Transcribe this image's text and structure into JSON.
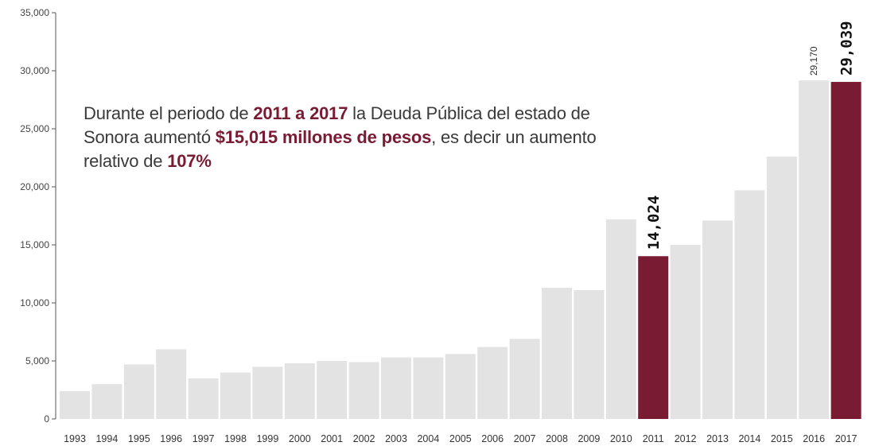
{
  "annotation": {
    "p1": "Durante el periodo de ",
    "h1": "2011 a 2017",
    "p2": " la Deuda Pública del estado de Sonora aumentó ",
    "h2": "$15,015 millones de pesos",
    "p3": ", es decir un aumento relativo de ",
    "h3": "107%"
  },
  "colors": {
    "bar": "#e3e3e3",
    "highlight": "#7a1b34",
    "axis": "#555555"
  },
  "chart_data": {
    "type": "bar",
    "title": "",
    "xlabel": "",
    "ylabel": "",
    "ylim": [
      0,
      35000
    ],
    "yticks": [
      0,
      5000,
      10000,
      15000,
      20000,
      25000,
      30000,
      35000
    ],
    "ytick_labels": [
      "0",
      "5,000",
      "10,000",
      "15,000",
      "20,000",
      "25,000",
      "30,000",
      "35,000"
    ],
    "categories": [
      "1993",
      "1994",
      "1995",
      "1996",
      "1997",
      "1998",
      "1999",
      "2000",
      "2001",
      "2002",
      "2003",
      "2004",
      "2005",
      "2006",
      "2007",
      "2008",
      "2009",
      "2010",
      "2011",
      "2012",
      "2013",
      "2014",
      "2015",
      "2016",
      "2017"
    ],
    "values": [
      2400,
      3000,
      4700,
      6000,
      3500,
      4000,
      4500,
      4800,
      5000,
      4900,
      5300,
      5300,
      5600,
      6200,
      6900,
      11300,
      11100,
      17200,
      14024,
      15000,
      17100,
      19700,
      22600,
      29170,
      29039
    ],
    "highlighted": [
      "2011",
      "2017"
    ],
    "data_labels": [
      {
        "category": "2011",
        "text": "14,024",
        "style": "big"
      },
      {
        "category": "2016",
        "text": "29,170",
        "style": "small"
      },
      {
        "category": "2017",
        "text": "29,039",
        "style": "big"
      }
    ],
    "grid": false,
    "legend": "none"
  }
}
